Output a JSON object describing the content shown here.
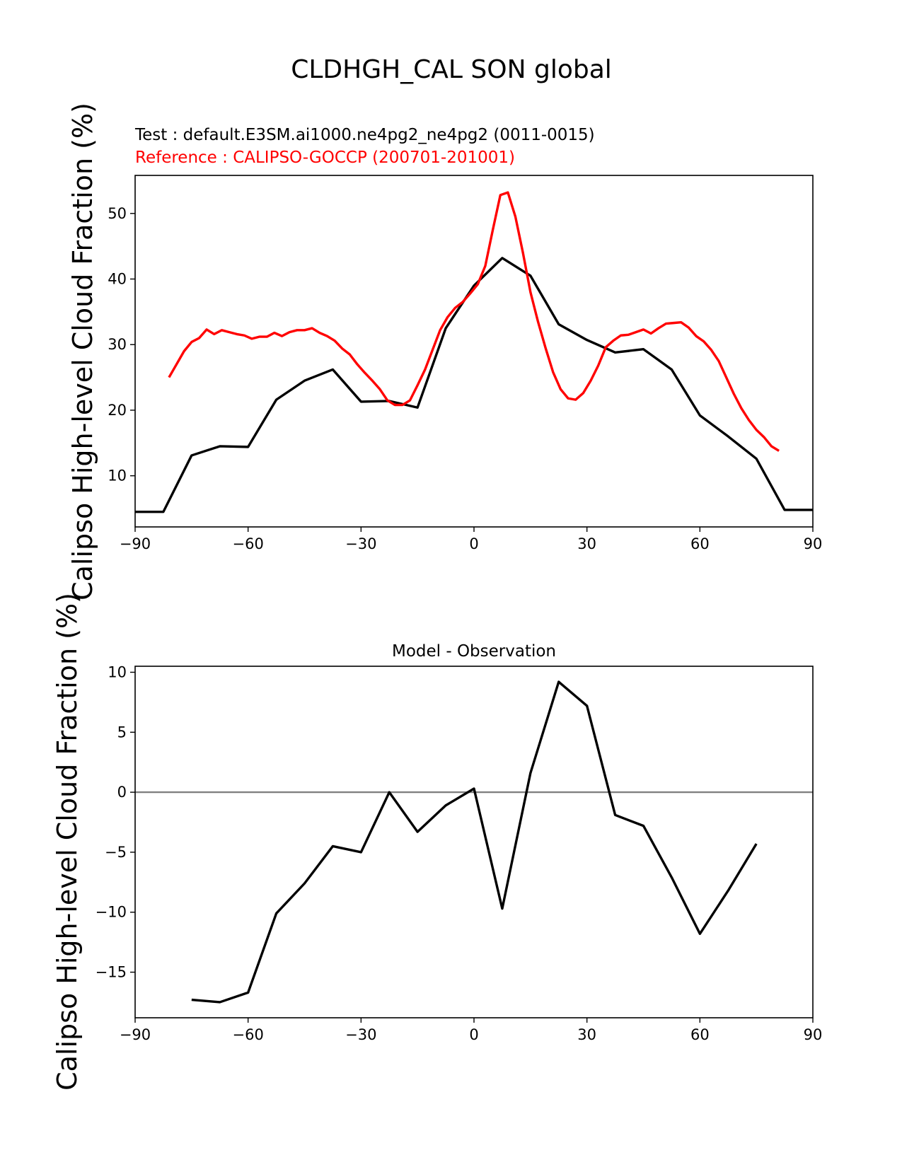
{
  "figure": {
    "suptitle": "CLDHGH_CAL SON global"
  },
  "chart_data": [
    {
      "type": "line",
      "test_label": "Test : default.E3SM.ai1000.ne4pg2_ne4pg2 (0011-0015)",
      "reference_label": "Reference : CALIPSO-GOCCP (200701-201001)",
      "ylabel": "Calipso High-level Cloud Fraction (%)",
      "xlim": [
        -90,
        90
      ],
      "ylim": [
        2.2,
        55.8
      ],
      "xticks": [
        -90,
        -60,
        -30,
        0,
        30,
        60,
        90
      ],
      "xtick_labels": [
        "−90",
        "−60",
        "−30",
        "0",
        "30",
        "60",
        "90"
      ],
      "yticks": [
        10,
        20,
        30,
        40,
        50
      ],
      "ytick_labels": [
        "10",
        "20",
        "30",
        "40",
        "50"
      ],
      "grid": false,
      "series": [
        {
          "color": "#000000",
          "x": [
            -90,
            -82.5,
            -75,
            -67.5,
            -60,
            -52.5,
            -45,
            -37.5,
            -30,
            -22.5,
            -15,
            -7.5,
            0,
            7.5,
            15,
            22.5,
            30,
            37.5,
            45,
            52.5,
            60,
            67.5,
            75,
            82.5,
            90
          ],
          "y": [
            4.5,
            4.5,
            13.1,
            14.5,
            14.4,
            21.6,
            24.5,
            26.2,
            21.3,
            21.4,
            20.4,
            32.5,
            39.0,
            43.2,
            40.5,
            33.1,
            30.7,
            28.8,
            29.3,
            26.2,
            19.2,
            16.0,
            12.6,
            4.8,
            4.8
          ]
        },
        {
          "color": "#ff0000",
          "x": [
            -81,
            -79,
            -77,
            -75,
            -73,
            -71,
            -69,
            -67,
            -65,
            -63,
            -61,
            -59,
            -57,
            -55,
            -53,
            -51,
            -49,
            -47,
            -45,
            -43,
            -41,
            -39,
            -37,
            -35,
            -33,
            -31,
            -29,
            -27,
            -25,
            -23,
            -21,
            -19,
            -17,
            -15,
            -13,
            -11,
            -9,
            -7,
            -5,
            -3,
            -1,
            1,
            3,
            5,
            7,
            9,
            11,
            13,
            15,
            17,
            19,
            21,
            23,
            25,
            27,
            29,
            31,
            33,
            35,
            37,
            39,
            41,
            43,
            45,
            47,
            49,
            51,
            53,
            55,
            57,
            59,
            61,
            63,
            65,
            67,
            69,
            71,
            73,
            75,
            77,
            79,
            81
          ],
          "y": [
            25.0,
            27.0,
            29.0,
            30.4,
            31.0,
            32.3,
            31.6,
            32.2,
            31.9,
            31.6,
            31.4,
            30.9,
            31.2,
            31.2,
            31.8,
            31.3,
            31.9,
            32.2,
            32.2,
            32.5,
            31.8,
            31.3,
            30.6,
            29.4,
            28.5,
            27.0,
            25.7,
            24.5,
            23.2,
            21.5,
            20.8,
            20.8,
            21.5,
            23.8,
            26.2,
            29.2,
            32.2,
            34.2,
            35.6,
            36.5,
            37.8,
            39.2,
            42.0,
            47.5,
            52.8,
            53.2,
            49.5,
            44.0,
            38.0,
            33.5,
            29.5,
            25.8,
            23.2,
            21.8,
            21.6,
            22.6,
            24.5,
            26.8,
            29.6,
            30.6,
            31.4,
            31.5,
            31.9,
            32.3,
            31.7,
            32.5,
            33.2,
            33.3,
            33.4,
            32.6,
            31.3,
            30.5,
            29.2,
            27.5,
            25.0,
            22.5,
            20.3,
            18.5,
            17.0,
            15.9,
            14.5,
            13.8
          ]
        }
      ]
    },
    {
      "type": "line",
      "title": "Model - Observation",
      "ylabel": "Calipso High-level Cloud Fraction (%)",
      "xlim": [
        -90,
        90
      ],
      "ylim": [
        -18.8,
        10.5
      ],
      "xticks": [
        -90,
        -60,
        -30,
        0,
        30,
        60,
        90
      ],
      "xtick_labels": [
        "−90",
        "−60",
        "−30",
        "0",
        "30",
        "60",
        "90"
      ],
      "yticks": [
        -15,
        -10,
        -5,
        0,
        5,
        10
      ],
      "ytick_labels": [
        "−15",
        "−10",
        "−5",
        "0",
        "5",
        "10"
      ],
      "grid": false,
      "zero_line_color": "#808080",
      "series": [
        {
          "color": "#000000",
          "x": [
            -75,
            -67.5,
            -60,
            -52.5,
            -45,
            -37.5,
            -30,
            -22.5,
            -15,
            -7.5,
            0,
            7.5,
            15,
            22.5,
            30,
            37.5,
            45,
            52.5,
            60,
            67.5,
            75
          ],
          "y": [
            -17.3,
            -17.5,
            -16.7,
            -10.1,
            -7.6,
            -4.5,
            -5.0,
            0.0,
            -3.3,
            -1.1,
            0.3,
            -9.7,
            1.6,
            9.2,
            7.2,
            -1.9,
            -2.8,
            -7.1,
            -11.8,
            -8.2,
            -4.3
          ]
        }
      ]
    }
  ]
}
